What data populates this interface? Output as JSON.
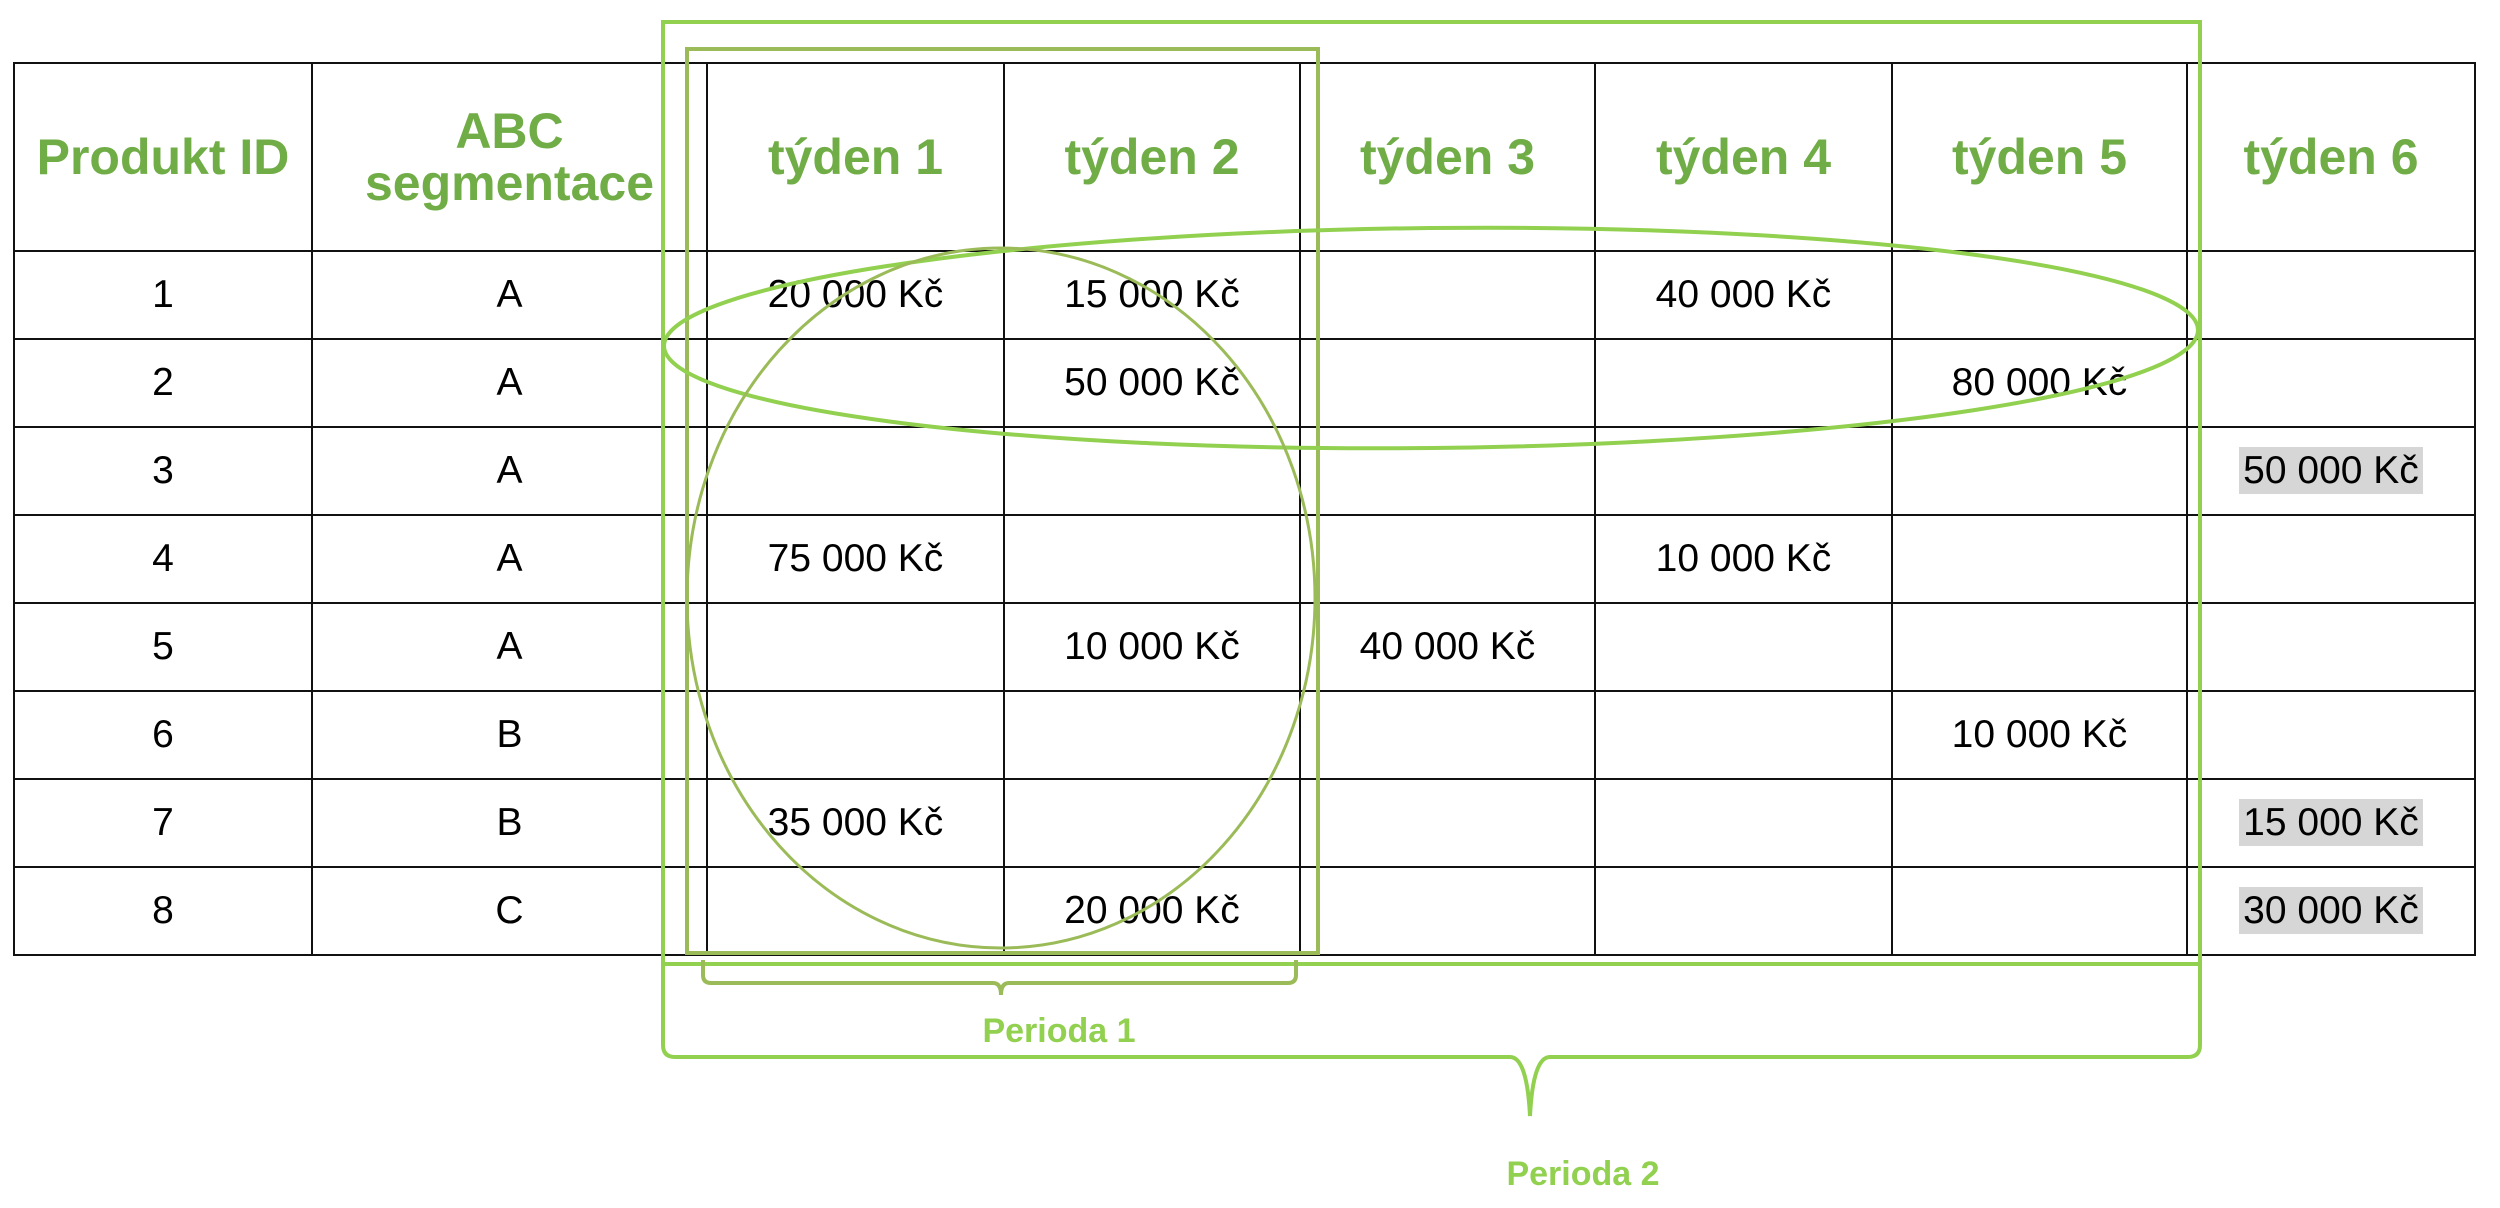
{
  "table": {
    "headers": [
      "Produkt ID",
      "ABC segmentace",
      "týden 1",
      "týden 2",
      "týden 3",
      "týden 4",
      "týden 5",
      "týden 6"
    ],
    "rows": [
      {
        "id": "1",
        "segment": "A",
        "weeks": [
          "20 000 Kč",
          "15 000 Kč",
          "",
          "40 000 Kč",
          "",
          ""
        ]
      },
      {
        "id": "2",
        "segment": "A",
        "weeks": [
          "",
          "50 000 Kč",
          "",
          "",
          "80 000 Kč",
          ""
        ]
      },
      {
        "id": "3",
        "segment": "A",
        "weeks": [
          "",
          "",
          "",
          "",
          "",
          "50 000 Kč"
        ]
      },
      {
        "id": "4",
        "segment": "A",
        "weeks": [
          "75 000 Kč",
          "",
          "",
          "10 000 Kč",
          "",
          ""
        ]
      },
      {
        "id": "5",
        "segment": "A",
        "weeks": [
          "",
          "10 000 Kč",
          "40 000 Kč",
          "",
          "",
          ""
        ]
      },
      {
        "id": "6",
        "segment": "B",
        "weeks": [
          "",
          "",
          "",
          "",
          "10 000 Kč",
          ""
        ]
      },
      {
        "id": "7",
        "segment": "B",
        "weeks": [
          "35 000 Kč",
          "",
          "",
          "",
          "",
          "15 000 Kč"
        ]
      },
      {
        "id": "8",
        "segment": "C",
        "weeks": [
          "",
          "20 000 Kč",
          "",
          "",
          "",
          "30 000 Kč"
        ]
      }
    ],
    "highlighted_column": "týden 6",
    "highlight_color": "#d6d6d6"
  },
  "annotations": {
    "period_1_label": "Perioda 1",
    "period_2_label": "Perioda 2",
    "accent_color": "#92d050",
    "accent_dark_color": "#9bbb59",
    "header_color": "#70ad47"
  }
}
